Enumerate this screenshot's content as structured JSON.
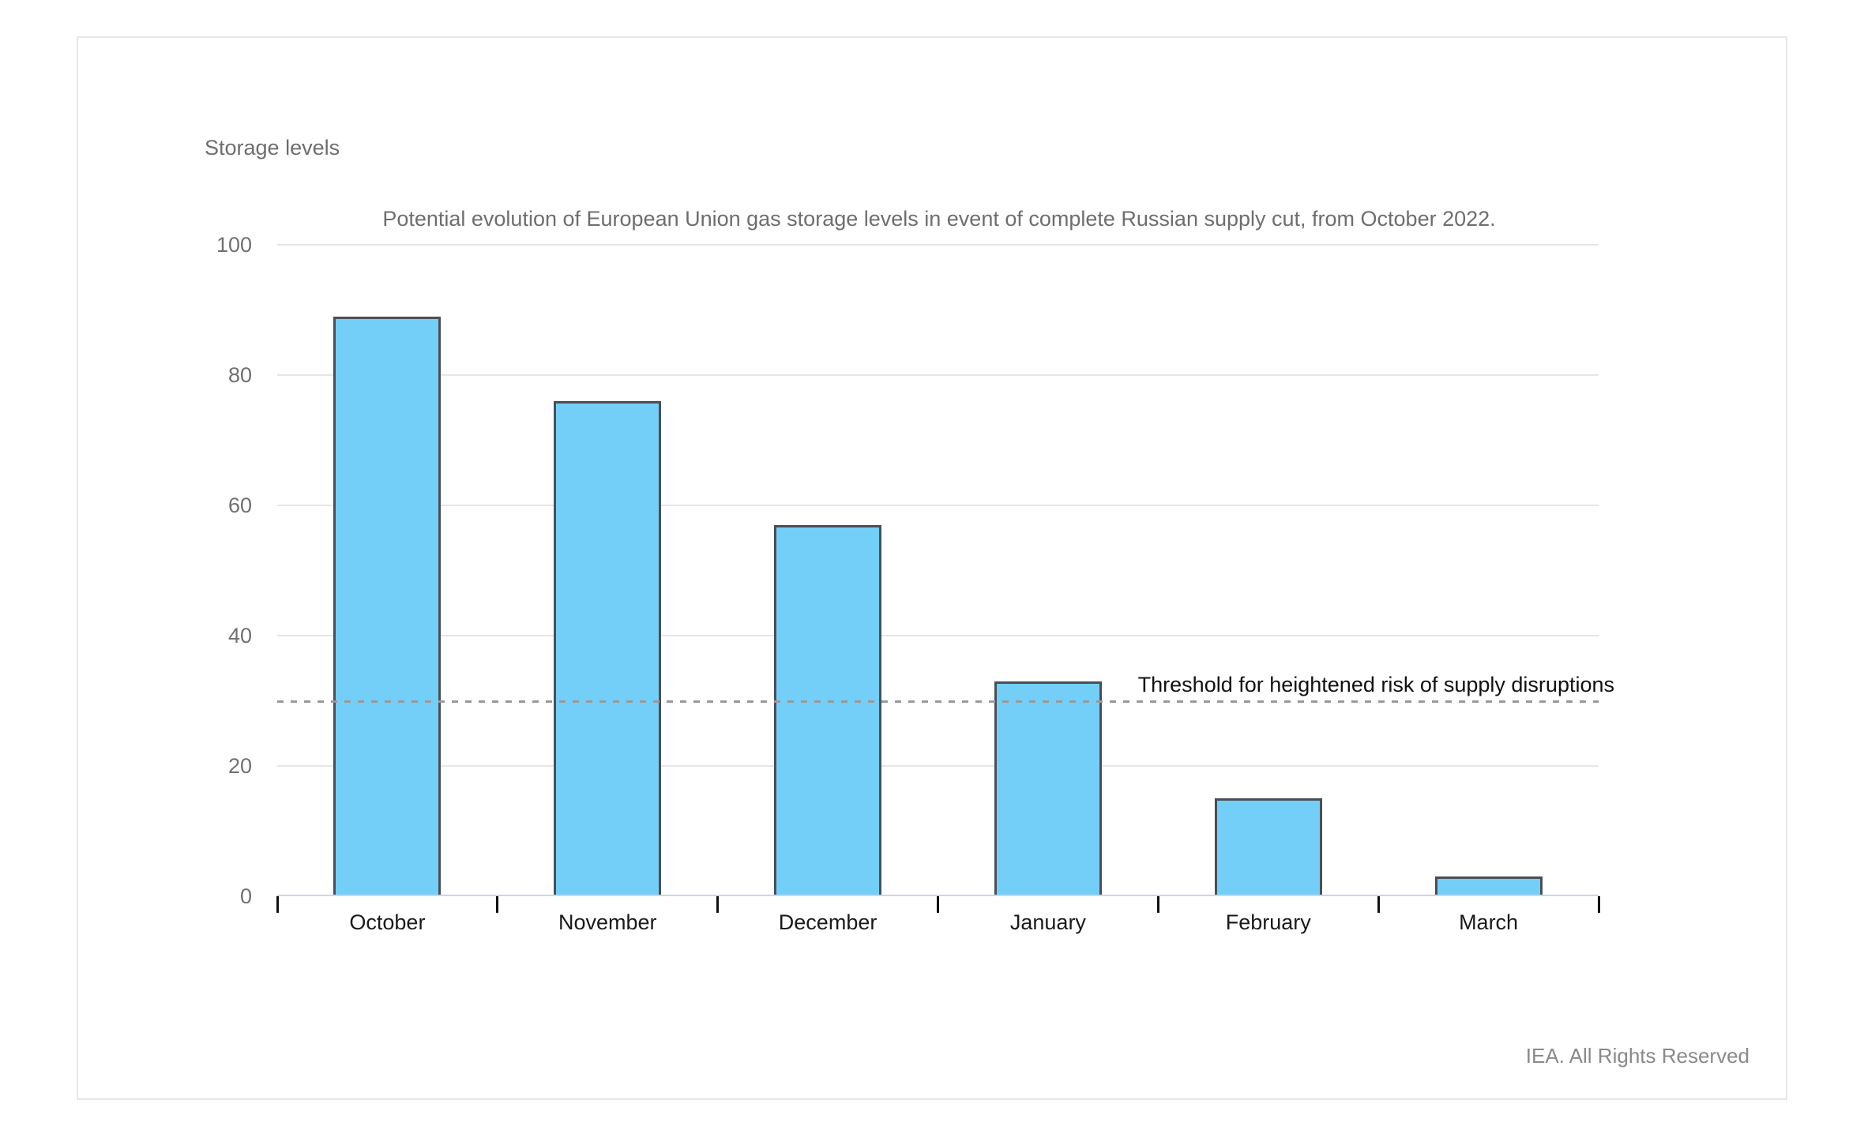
{
  "footer": {
    "text": "IEA. All Rights Reserved"
  },
  "chart_data": {
    "type": "bar",
    "title": "Potential evolution of European Union gas storage levels in event of complete Russian supply cut, from October 2022.",
    "ylabel": "Storage levels",
    "xlabel": "",
    "categories": [
      "October",
      "November",
      "December",
      "January",
      "February",
      "March"
    ],
    "values": [
      89,
      76,
      57,
      33,
      15,
      3
    ],
    "ylim": [
      0,
      100
    ],
    "yticks": [
      100,
      80,
      60,
      40,
      20,
      0
    ],
    "grid": true,
    "legend_position": "none",
    "threshold": {
      "value": 30,
      "label": "Threshold for heightened risk of supply disruptions"
    },
    "colors": {
      "bar_fill": "#73CFF7",
      "bar_border": "#4A4F56",
      "gridline": "#E6E6E6",
      "axis_line": "#CCD6EB",
      "threshold_line": "#999999"
    }
  }
}
